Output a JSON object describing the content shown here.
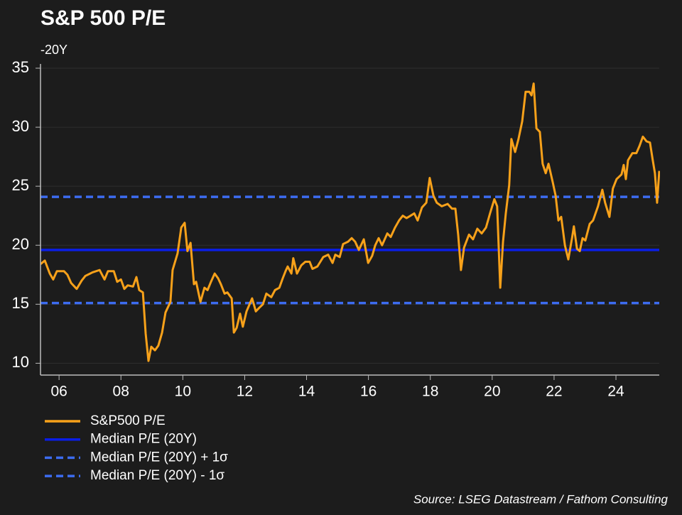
{
  "chart_data": {
    "type": "line",
    "title": "S&P 500 P/E",
    "subtitle": "-20Y",
    "source": "Source: LSEG Datastream / Fathom Consulting",
    "xlim": [
      2005.4,
      2025.4
    ],
    "xticks": [
      {
        "value": 2006,
        "label": "06"
      },
      {
        "value": 2008,
        "label": "08"
      },
      {
        "value": 2010,
        "label": "10"
      },
      {
        "value": 2012,
        "label": "12"
      },
      {
        "value": 2014,
        "label": "14"
      },
      {
        "value": 2016,
        "label": "16"
      },
      {
        "value": 2018,
        "label": "18"
      },
      {
        "value": 2020,
        "label": "20"
      },
      {
        "value": 2022,
        "label": "22"
      },
      {
        "value": 2024,
        "label": "24"
      }
    ],
    "ylim": [
      9,
      35
    ],
    "yticks": [
      10,
      15,
      20,
      25,
      30,
      35
    ],
    "grid": true,
    "x": [
      2005.4,
      2005.54,
      2005.7,
      2005.81,
      2005.93,
      2006.16,
      2006.27,
      2006.39,
      2006.57,
      2006.73,
      2006.85,
      2007.08,
      2007.31,
      2007.47,
      2007.58,
      2007.77,
      2007.88,
      2008.0,
      2008.11,
      2008.22,
      2008.39,
      2008.5,
      2008.59,
      2008.71,
      2008.8,
      2008.89,
      2008.98,
      2009.1,
      2009.21,
      2009.33,
      2009.44,
      2009.6,
      2009.67,
      2009.83,
      2009.95,
      2010.06,
      2010.15,
      2010.25,
      2010.36,
      2010.43,
      2010.57,
      2010.7,
      2010.8,
      2010.91,
      2011.03,
      2011.14,
      2011.23,
      2011.35,
      2011.44,
      2011.58,
      2011.65,
      2011.74,
      2011.85,
      2011.94,
      2012.06,
      2012.24,
      2012.36,
      2012.47,
      2012.59,
      2012.7,
      2012.86,
      2012.98,
      2013.12,
      2013.23,
      2013.32,
      2013.39,
      2013.51,
      2013.57,
      2013.69,
      2013.83,
      2013.96,
      2014.1,
      2014.19,
      2014.35,
      2014.54,
      2014.7,
      2014.84,
      2014.93,
      2015.07,
      2015.18,
      2015.34,
      2015.46,
      2015.57,
      2015.69,
      2015.85,
      2015.99,
      2016.12,
      2016.22,
      2016.33,
      2016.44,
      2016.61,
      2016.72,
      2016.86,
      2016.99,
      2017.11,
      2017.23,
      2017.36,
      2017.48,
      2017.59,
      2017.73,
      2017.87,
      2017.98,
      2018.1,
      2018.21,
      2018.37,
      2018.56,
      2018.7,
      2018.81,
      2018.9,
      2018.99,
      2019.09,
      2019.25,
      2019.38,
      2019.52,
      2019.66,
      2019.8,
      2019.93,
      2020.07,
      2020.16,
      2020.26,
      2020.35,
      2020.44,
      2020.55,
      2020.62,
      2020.74,
      2020.85,
      2020.97,
      2021.08,
      2021.2,
      2021.27,
      2021.34,
      2021.43,
      2021.54,
      2021.63,
      2021.73,
      2021.82,
      2021.96,
      2022.05,
      2022.14,
      2022.23,
      2022.35,
      2022.46,
      2022.58,
      2022.64,
      2022.74,
      2022.83,
      2022.92,
      2023.01,
      2023.15,
      2023.26,
      2023.42,
      2023.56,
      2023.65,
      2023.79,
      2023.9,
      2024.02,
      2024.18,
      2024.25,
      2024.32,
      2024.39,
      2024.53,
      2024.66,
      2024.76,
      2024.87,
      2024.99,
      2025.1,
      2025.19,
      2025.26,
      2025.33,
      2025.4
    ],
    "series": [
      {
        "name": "S&P500 P/E",
        "color": "#f7a11a",
        "values": [
          18.4,
          18.7,
          17.6,
          17.1,
          17.8,
          17.8,
          17.5,
          16.8,
          16.3,
          17.0,
          17.4,
          17.7,
          17.9,
          17.1,
          17.8,
          17.8,
          16.9,
          17.1,
          16.3,
          16.6,
          16.5,
          17.3,
          16.2,
          16.0,
          12.5,
          10.2,
          11.4,
          11.1,
          11.5,
          12.6,
          14.3,
          15.2,
          17.9,
          19.3,
          21.5,
          21.9,
          19.5,
          20.2,
          16.7,
          16.9,
          15.2,
          16.4,
          16.2,
          16.9,
          17.6,
          17.2,
          16.7,
          15.9,
          16.0,
          15.5,
          12.6,
          13.0,
          14.2,
          13.1,
          14.4,
          15.5,
          14.4,
          14.7,
          15.0,
          15.9,
          15.6,
          16.2,
          16.4,
          17.2,
          17.8,
          18.2,
          17.6,
          18.9,
          17.6,
          18.3,
          18.6,
          18.6,
          18.0,
          18.2,
          19.0,
          19.2,
          18.5,
          19.2,
          19.0,
          20.1,
          20.3,
          20.6,
          20.3,
          19.6,
          20.5,
          18.5,
          19.1,
          20.0,
          20.6,
          20.0,
          21.0,
          20.7,
          21.5,
          22.1,
          22.5,
          22.3,
          22.5,
          22.7,
          22.1,
          23.2,
          23.6,
          25.7,
          24.2,
          23.6,
          23.3,
          23.5,
          23.1,
          23.1,
          20.9,
          17.9,
          19.8,
          20.9,
          20.5,
          21.4,
          21.0,
          21.5,
          22.7,
          23.9,
          23.3,
          16.4,
          20.3,
          22.7,
          25.1,
          29.0,
          27.9,
          29.0,
          30.5,
          33.0,
          33.0,
          32.7,
          33.7,
          29.9,
          29.6,
          26.9,
          26.1,
          26.9,
          25.3,
          24.2,
          22.1,
          22.4,
          20.0,
          18.8,
          20.6,
          21.6,
          19.7,
          19.5,
          20.6,
          20.4,
          21.8,
          22.1,
          23.3,
          24.7,
          23.6,
          22.4,
          24.8,
          25.6,
          26.0,
          26.8,
          25.6,
          27.2,
          27.8,
          27.8,
          28.4,
          29.2,
          28.8,
          28.7,
          27.2,
          26.1,
          23.6,
          26.3
        ]
      }
    ],
    "hlines": [
      {
        "name": "Median P/E (20Y)",
        "color": "#0a1ee6",
        "value": 19.6,
        "style": "solid"
      },
      {
        "name": "Median P/E (20Y) + 1σ",
        "color": "#3d6cf0",
        "value": 24.1,
        "style": "dashed"
      },
      {
        "name": "Median P/E (20Y) - 1σ",
        "color": "#3d6cf0",
        "value": 15.1,
        "style": "dashed"
      }
    ]
  }
}
